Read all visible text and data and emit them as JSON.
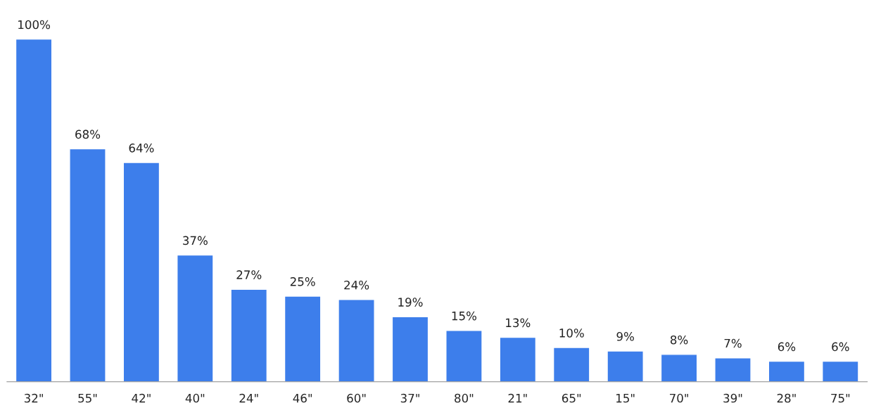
{
  "chart_data": {
    "type": "bar",
    "categories": [
      "32\"",
      "55\"",
      "42\"",
      "40\"",
      "24\"",
      "46\"",
      "60\"",
      "37\"",
      "80\"",
      "21\"",
      "65\"",
      "15\"",
      "70\"",
      "39\"",
      "28\"",
      "75\""
    ],
    "values": [
      100,
      68,
      64,
      37,
      27,
      25,
      24,
      19,
      15,
      13,
      10,
      9,
      8,
      7,
      6,
      6
    ],
    "value_labels": [
      "100%",
      "68%",
      "64%",
      "37%",
      "27%",
      "25%",
      "24%",
      "19%",
      "15%",
      "13%",
      "10%",
      "9%",
      "8%",
      "7%",
      "6%",
      "6%"
    ],
    "color": "#3d7eeb",
    "grid": false,
    "legend": false
  }
}
